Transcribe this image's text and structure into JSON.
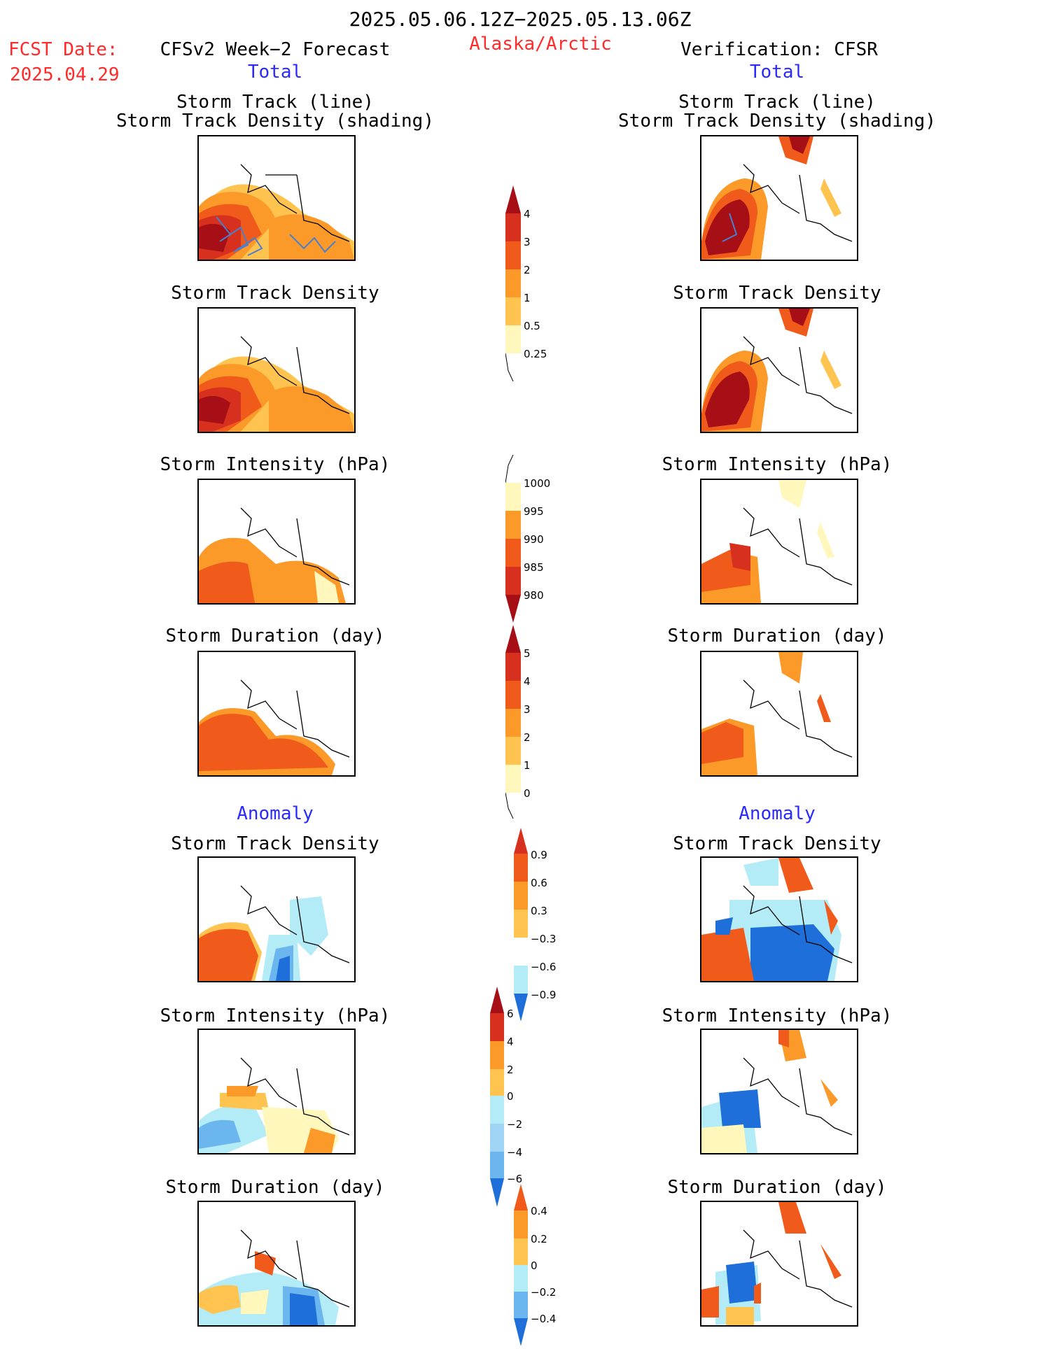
{
  "header": {
    "title": "2025.05.06.12Z−2025.05.13.06Z",
    "region": "Alaska/Arctic",
    "fcst_label": "FCST Date:",
    "fcst_date": "2025.04.29",
    "forecast_title": "CFSv2 Week−2 Forecast",
    "verification_title": "Verification: CFSR",
    "total_left": "Total",
    "total_right": "Total",
    "anomaly_left": "Anomaly",
    "anomaly_right": "Anomaly"
  },
  "panel_titles": {
    "track_line": "Storm Track (line)",
    "track_density_shading": "Storm Track Density (shading)",
    "track_density": "Storm Track Density",
    "intensity": "Storm Intensity (hPa)",
    "duration": "Storm Duration (day)"
  },
  "colorbars": {
    "density_total": [
      "4",
      "3",
      "2",
      "1",
      "0.5",
      "0.25"
    ],
    "intensity_total": [
      "1000",
      "995",
      "990",
      "985",
      "980"
    ],
    "duration_total": [
      "5",
      "4",
      "3",
      "2",
      "1",
      "0"
    ],
    "density_anom": [
      "0.9",
      "0.6",
      "0.3",
      "−0.3",
      "−0.6",
      "−0.9"
    ],
    "intensity_anom": [
      "6",
      "4",
      "2",
      "0",
      "−2",
      "−4",
      "−6"
    ],
    "duration_anom": [
      "0.4",
      "0.2",
      "0",
      "−0.2",
      "−0.4"
    ]
  },
  "colors": {
    "dark_red": "#a50f15",
    "red": "#d7301f",
    "orange_red": "#f05a1a",
    "orange": "#fb9a29",
    "light_orange": "#fec44f",
    "pale_yellow": "#fff7bc",
    "light_blue": "#b3ecf7",
    "mid_blue": "#6cb6f0",
    "blue": "#1e6fd9",
    "track_line": "#4a7fd0"
  }
}
